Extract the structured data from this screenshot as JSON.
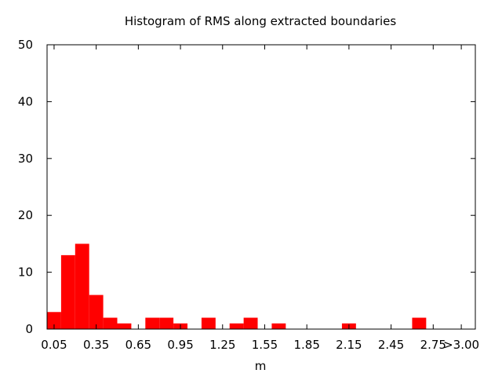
{
  "chart_data": {
    "type": "bar",
    "title": "Histogram of RMS along extracted boundaries",
    "xlabel": "m",
    "ylabel": "",
    "bin_width": 0.1,
    "xlim": [
      0.0,
      3.05
    ],
    "ylim": [
      0,
      50
    ],
    "yticks": [
      0,
      10,
      20,
      30,
      40,
      50
    ],
    "xtick_labels": [
      "0.05",
      "0.35",
      "0.65",
      "0.95",
      "1.25",
      "1.55",
      "1.85",
      "2.15",
      "2.45",
      "2.75",
      ">3.00"
    ],
    "bin_centers": [
      0.05,
      0.15,
      0.25,
      0.35,
      0.45,
      0.55,
      0.65,
      0.75,
      0.85,
      0.95,
      1.05,
      1.15,
      1.25,
      1.35,
      1.45,
      1.55,
      1.65,
      1.75,
      1.85,
      1.95,
      2.05,
      2.15,
      2.25,
      2.35,
      2.45,
      2.55,
      2.65,
      2.75,
      2.85,
      2.95
    ],
    "values": [
      3,
      13,
      15,
      6,
      2,
      1,
      0,
      2,
      2,
      1,
      0,
      2,
      0,
      1,
      2,
      0,
      1,
      0,
      0,
      0,
      0,
      1,
      0,
      0,
      0,
      0,
      2,
      0,
      0,
      0
    ],
    "bar_color": "#ff0000",
    "grid": false,
    "legend": "none"
  }
}
